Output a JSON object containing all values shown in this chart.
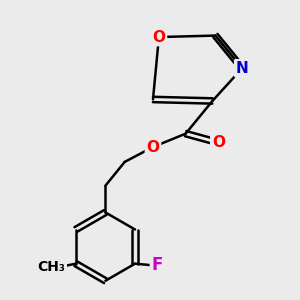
{
  "background_color": "#ebebeb",
  "bond_color": "#000000",
  "bond_width": 1.8,
  "atom_colors": {
    "O": "#ff0000",
    "N": "#0000cc",
    "F": "#cc00cc",
    "C": "#000000"
  },
  "font_size_atoms": 11,
  "font_size_methyl": 10
}
